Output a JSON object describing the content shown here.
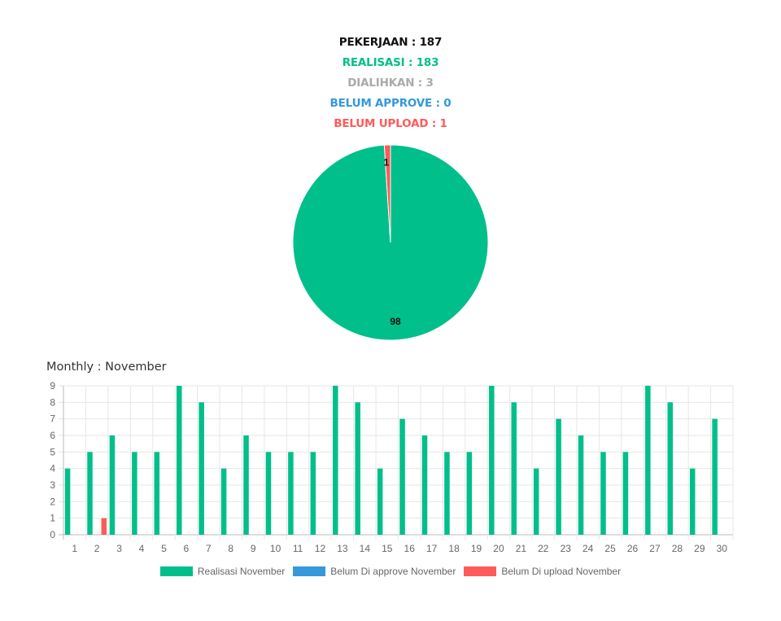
{
  "summary": {
    "pekerjaan": "PEKERJAAN : 187",
    "realisasi": "REALISASI : 183",
    "dialihkan": "DIALIHKAN : 3",
    "belum_approve": "BELUM APPROVE : 0",
    "belum_upload": "BELUM UPLOAD : 1"
  },
  "colors": {
    "realisasi": "#00BF8A",
    "dialihkan": "#AAAAAA",
    "approve": "#3498DB",
    "upload": "#FF5A5A"
  },
  "monthly_title": "Monthly : November",
  "chart_data": [
    {
      "type": "pie",
      "labels": [
        "98",
        "1"
      ],
      "slices": [
        {
          "label": "98",
          "value": 98,
          "color": "#00BF8A"
        },
        {
          "label": "1",
          "value": 1,
          "color": "#FF5A5A"
        }
      ]
    },
    {
      "type": "bar",
      "categories": [
        "1",
        "2",
        "3",
        "4",
        "5",
        "6",
        "7",
        "8",
        "9",
        "10",
        "11",
        "12",
        "13",
        "14",
        "15",
        "16",
        "17",
        "18",
        "19",
        "20",
        "21",
        "22",
        "23",
        "24",
        "25",
        "26",
        "27",
        "28",
        "29",
        "30"
      ],
      "ylim": [
        0,
        9
      ],
      "yticks": [
        "0",
        "1",
        "2",
        "3",
        "4",
        "5",
        "6",
        "7",
        "8",
        "9"
      ],
      "grid": true,
      "legend_position": "bottom",
      "series": [
        {
          "name": "Realisasi November",
          "color": "#00BF8A",
          "values": [
            4,
            5,
            6,
            5,
            5,
            9,
            8,
            4,
            6,
            5,
            5,
            5,
            9,
            8,
            4,
            7,
            6,
            5,
            5,
            9,
            8,
            4,
            7,
            6,
            5,
            5,
            9,
            8,
            4,
            7
          ]
        },
        {
          "name": "Belum Di approve November",
          "color": "#3498DB",
          "values": [
            0,
            0,
            0,
            0,
            0,
            0,
            0,
            0,
            0,
            0,
            0,
            0,
            0,
            0,
            0,
            0,
            0,
            0,
            0,
            0,
            0,
            0,
            0,
            0,
            0,
            0,
            0,
            0,
            0,
            0
          ]
        },
        {
          "name": "Belum Di upload November",
          "color": "#FF5A5A",
          "values": [
            0,
            1,
            0,
            0,
            0,
            0,
            0,
            0,
            0,
            0,
            0,
            0,
            0,
            0,
            0,
            0,
            0,
            0,
            0,
            0,
            0,
            0,
            0,
            0,
            0,
            0,
            0,
            0,
            0,
            0
          ]
        }
      ]
    }
  ]
}
